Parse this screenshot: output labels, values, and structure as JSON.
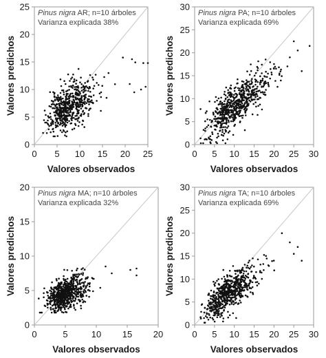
{
  "chart_data": [
    {
      "type": "scatter",
      "annotation": {
        "species": "Pinus nigra",
        "rest": " AR; n=10 árboles",
        "variance": "Varianza explicada 38%"
      },
      "xlabel": "Valores observados",
      "ylabel": "Valores predichos",
      "xlim": [
        0,
        25
      ],
      "ylim": [
        0,
        25
      ],
      "xticks": [
        0,
        5,
        10,
        15,
        20,
        25
      ],
      "yticks": [
        0,
        5,
        10,
        15,
        20,
        25
      ],
      "identity_line": true,
      "scatter": {
        "n": 600,
        "x_mean": 7.0,
        "x_sd": 3.3,
        "x_min": 1.0,
        "x_max": 24.5,
        "slope": 0.42,
        "intercept": 3.8,
        "noise": 2.0,
        "y_min": 1.5,
        "y_max": 16.5,
        "seed": 11
      },
      "extra_points": [
        [
          21,
          11
        ],
        [
          22,
          9.5
        ],
        [
          23.5,
          10
        ],
        [
          24.5,
          10.5
        ],
        [
          24,
          14.8
        ],
        [
          25,
          14.8
        ],
        [
          21.5,
          15.5
        ],
        [
          19.5,
          15.8
        ]
      ]
    },
    {
      "type": "scatter",
      "annotation": {
        "species": "Pinus nigra",
        "rest": " PA; n=10 árboles",
        "variance": "Varianza explicada 69%"
      },
      "xlabel": "Valores observados",
      "ylabel": "Valores predichos",
      "xlim": [
        0,
        30
      ],
      "ylim": [
        0,
        30
      ],
      "xticks": [
        0,
        5,
        10,
        15,
        20,
        25,
        30
      ],
      "yticks": [
        0,
        5,
        10,
        15,
        20,
        25,
        30
      ],
      "identity_line": true,
      "scatter": {
        "n": 650,
        "x_mean": 9.5,
        "x_sd": 4.8,
        "x_min": 1.5,
        "x_max": 27.5,
        "slope": 0.72,
        "intercept": 1.0,
        "noise": 2.2,
        "y_min": 0.3,
        "y_max": 23,
        "seed": 23
      },
      "extra_points": [
        [
          29,
          21.5
        ],
        [
          26,
          20.5
        ],
        [
          25,
          22.5
        ],
        [
          27,
          16
        ],
        [
          24,
          19
        ]
      ]
    },
    {
      "type": "scatter",
      "annotation": {
        "species": "Pinus nigra",
        "rest": " MA; n=10 árboles",
        "variance": "Varianza explicada 32%"
      },
      "xlabel": "Valores observados",
      "ylabel": "Valores predichos",
      "xlim": [
        0,
        20
      ],
      "ylim": [
        0,
        20
      ],
      "xticks": [
        0,
        5,
        10,
        15,
        20
      ],
      "yticks": [
        0,
        5,
        10,
        15,
        20
      ],
      "identity_line": true,
      "scatter": {
        "n": 700,
        "x_mean": 4.6,
        "x_sd": 2.0,
        "x_min": 0.6,
        "x_max": 13,
        "slope": 0.4,
        "intercept": 2.5,
        "noise": 1.1,
        "y_min": 1.8,
        "y_max": 10,
        "seed": 37
      },
      "extra_points": [
        [
          15.5,
          8
        ],
        [
          16.5,
          8.2
        ],
        [
          16.5,
          7.2
        ],
        [
          12.5,
          7.5
        ],
        [
          11.5,
          8.5
        ]
      ]
    },
    {
      "type": "scatter",
      "annotation": {
        "species": "Pinus nigra",
        "rest": " TA; n=10 árboles",
        "variance": "Varianza explicada 69%"
      },
      "xlabel": "Valores observados",
      "ylabel": "Valores predichos",
      "xlim": [
        0,
        30
      ],
      "ylim": [
        0,
        30
      ],
      "xticks": [
        0,
        5,
        10,
        15,
        20,
        25,
        30
      ],
      "yticks": [
        0,
        5,
        10,
        15,
        20,
        25,
        30
      ],
      "identity_line": true,
      "scatter": {
        "n": 650,
        "x_mean": 8.0,
        "x_sd": 4.2,
        "x_min": 1.5,
        "x_max": 26,
        "slope": 0.62,
        "intercept": 1.6,
        "noise": 2.0,
        "y_min": 0.5,
        "y_max": 20,
        "seed": 53
      },
      "extra_points": [
        [
          27,
          14
        ],
        [
          25,
          15.5
        ],
        [
          24,
          18
        ],
        [
          22,
          20
        ],
        [
          26,
          17
        ]
      ]
    }
  ]
}
